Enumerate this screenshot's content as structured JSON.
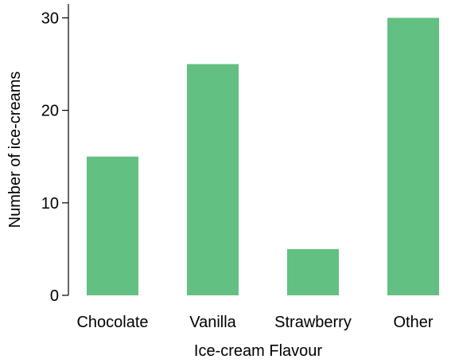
{
  "chart_data": {
    "type": "bar",
    "title": "",
    "xlabel": "Ice-cream Flavour",
    "ylabel": "Number of ice-creams",
    "categories": [
      "Chocolate",
      "Vanilla",
      "Strawberry",
      "Other"
    ],
    "values": [
      15,
      25,
      5,
      30
    ],
    "ylim": [
      0,
      31.5
    ],
    "yticks": [
      0,
      10,
      20,
      30
    ],
    "bar_color": "#62c083",
    "grid": false,
    "legend": "none"
  }
}
